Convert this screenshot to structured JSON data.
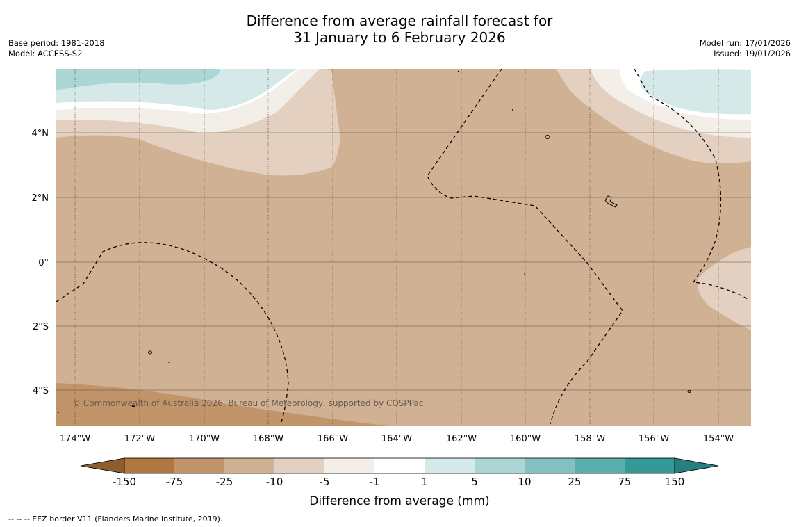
{
  "header": {
    "title_line1": "Difference from average rainfall forecast for",
    "title_line2": "31 January to 6 February 2026",
    "base_period": "Base period: 1981-2018",
    "model": "Model: ACCESS-S2",
    "model_run": "Model run: 17/01/2026",
    "issued": "Issued: 19/01/2026"
  },
  "map": {
    "lat_labels": [
      "4°N",
      "2°N",
      "0°",
      "2°S",
      "4°S"
    ],
    "lon_labels": [
      "174°W",
      "172°W",
      "170°W",
      "168°W",
      "166°W",
      "164°W",
      "162°W",
      "160°W",
      "158°W",
      "156°W",
      "154°W"
    ],
    "copyright": "© Commonwealth of Australia 2026, Bureau of Meteorology, supported by COSPPac"
  },
  "colorbar": {
    "ticks": [
      "-150",
      "-75",
      "-25",
      "-10",
      "-5",
      "-1",
      "1",
      "5",
      "10",
      "25",
      "75",
      "150"
    ],
    "colors": [
      "#8e5d2f",
      "#b07840",
      "#c2946a",
      "#d1b194",
      "#e3d0c0",
      "#f3eee8",
      "#ffffff",
      "#d4e9e8",
      "#acd5d5",
      "#82c1bf",
      "#5aaeab",
      "#339a97",
      "#28807e"
    ],
    "label": "Difference from average (mm)"
  },
  "footer": {
    "note": "-- -- -- EEZ border V11 (Flanders Marine Institute, 2019)."
  }
}
